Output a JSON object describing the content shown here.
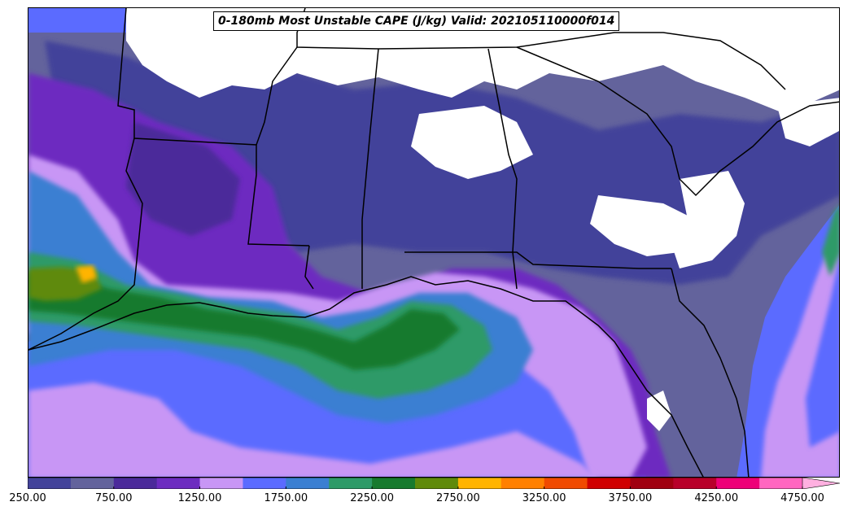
{
  "title": "0-180mb Most Unstable CAPE (J/kg) Valid: 202105110000f014",
  "colorbar": {
    "levels": [
      250,
      500,
      750,
      1000,
      1250,
      1500,
      1750,
      2000,
      2250,
      2500,
      2750,
      3000,
      3250,
      3500,
      3750,
      4000,
      4250,
      4500,
      4750,
      5000
    ],
    "colors": [
      "#43439a",
      "#63639c",
      "#4b2a9a",
      "#6d2cc0",
      "#c896f5",
      "#5b6bff",
      "#3a7fd2",
      "#2e9a68",
      "#177a2e",
      "#5f8a0a",
      "#ffb400",
      "#ff8000",
      "#f04a00",
      "#d00000",
      "#a00010",
      "#b8002a",
      "#ee0078",
      "#ff66c0",
      "#ffb0e0"
    ],
    "extend": "max",
    "tick_labels": [
      "250.00",
      "750.00",
      "1250.00",
      "1750.00",
      "2250.00",
      "2750.00",
      "3250.00",
      "3750.00",
      "4250.00",
      "4750.00"
    ],
    "tick_values": [
      250,
      750,
      1250,
      1750,
      2250,
      2750,
      3250,
      3750,
      4250,
      4750
    ]
  },
  "map": {
    "no_data_color": "#ffffff",
    "boundary_color": "#000000"
  }
}
